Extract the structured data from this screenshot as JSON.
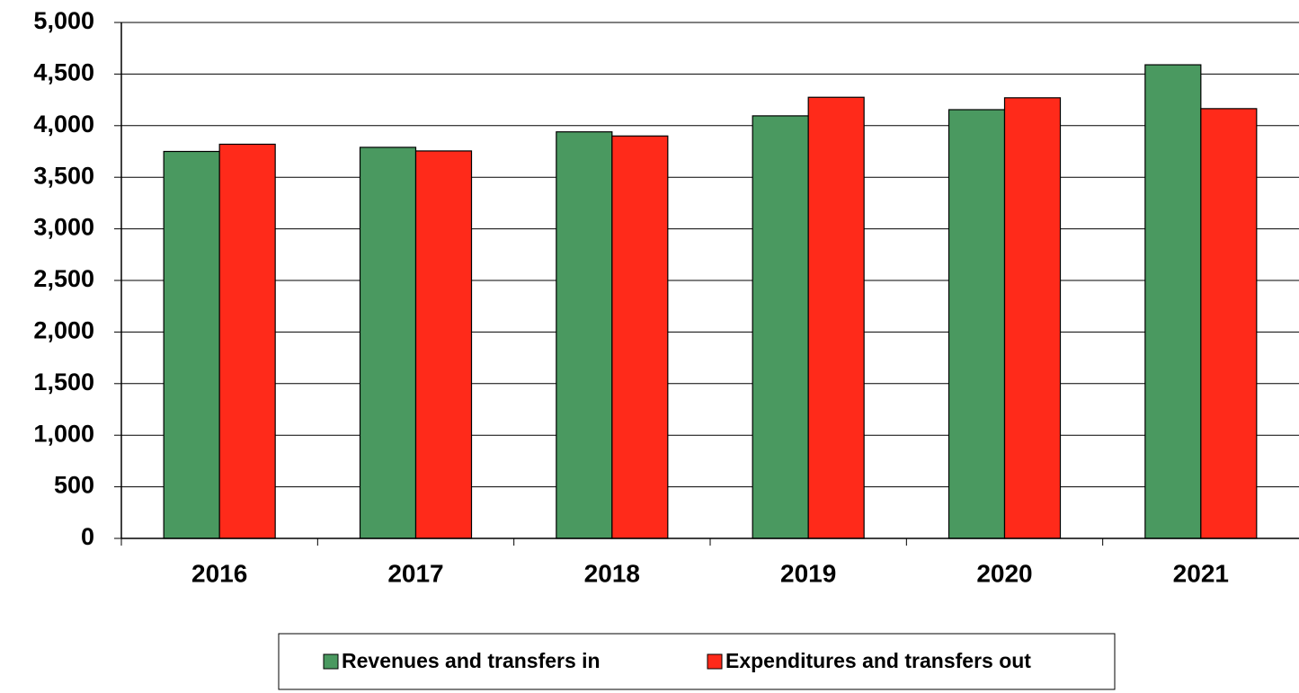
{
  "chart_data": {
    "type": "bar",
    "categories": [
      "2016",
      "2017",
      "2018",
      "2019",
      "2020",
      "2021"
    ],
    "series": [
      {
        "name": "Revenues and transfers in",
        "color": "#4a9960",
        "values": [
          3750,
          3790,
          3940,
          4095,
          4155,
          4590
        ]
      },
      {
        "name": "Expenditures and transfers out",
        "color": "#ff2a1a",
        "values": [
          3820,
          3755,
          3900,
          4275,
          4270,
          4165
        ]
      }
    ],
    "ylim": [
      0,
      5000
    ],
    "yticks": [
      0,
      500,
      {
        "value": 1000,
        "label": "1,000"
      },
      {
        "value": 1500,
        "label": "1,500"
      },
      {
        "value": 2000,
        "label": "2,000"
      },
      {
        "value": 2500,
        "label": "2,500"
      },
      {
        "value": 3000,
        "label": "3,000"
      },
      {
        "value": 3500,
        "label": "3,500"
      },
      {
        "value": 4000,
        "label": "4,000"
      },
      {
        "value": 4500,
        "label": "4,500"
      },
      {
        "value": 5000,
        "label": "5,000"
      }
    ],
    "grid": true,
    "legend": "bottom"
  }
}
